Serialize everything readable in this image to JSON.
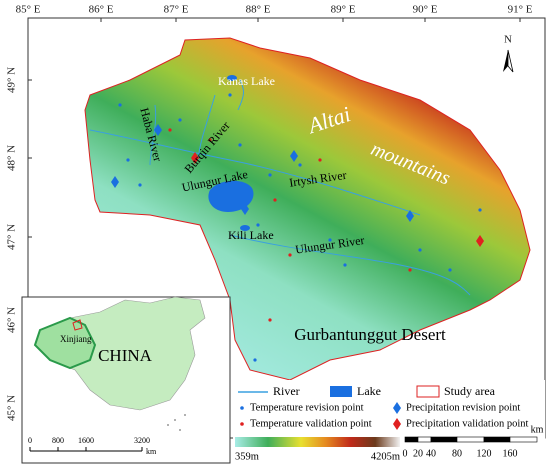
{
  "longitude_labels": [
    "85° E",
    "86° E",
    "87° E",
    "88° E",
    "89° E",
    "90° E",
    "91° E"
  ],
  "latitude_labels": [
    "49° N",
    "48° N",
    "47° N",
    "46° N",
    "45° N"
  ],
  "north_arrow": "N",
  "map_labels": {
    "kanas_lake": "Kanas Lake",
    "haba_river": "Haba River",
    "burqin_river": "Burqin River",
    "ulungur_lake": "Ulungur Lake",
    "irtysh_river": "Irtysh River",
    "kili_lake": "Kili Lake",
    "ulungur_river": "Ulungur River",
    "altai": "Altai",
    "mountains": "mountains",
    "desert": "Gurbantunggut  Desert"
  },
  "inset": {
    "province": "Xinjiang",
    "country": "CHINA",
    "scale": [
      "0",
      "800",
      "1600",
      "3200"
    ],
    "scale_unit": "km"
  },
  "legend": {
    "river": "River",
    "lake": "Lake",
    "study_area": "Study area",
    "temperature_revision": "Temperature revision point",
    "precipitation_revision": "Precipitation revision point",
    "temperature_validation": "Temperature validation point",
    "precipitation_validation": "Precipitation validation point",
    "elevation_min": "359m",
    "elevation_max": "4205m"
  },
  "scale_bar": {
    "ticks": [
      "0",
      "20",
      "40",
      "80",
      "120",
      "160"
    ],
    "unit": "km"
  }
}
